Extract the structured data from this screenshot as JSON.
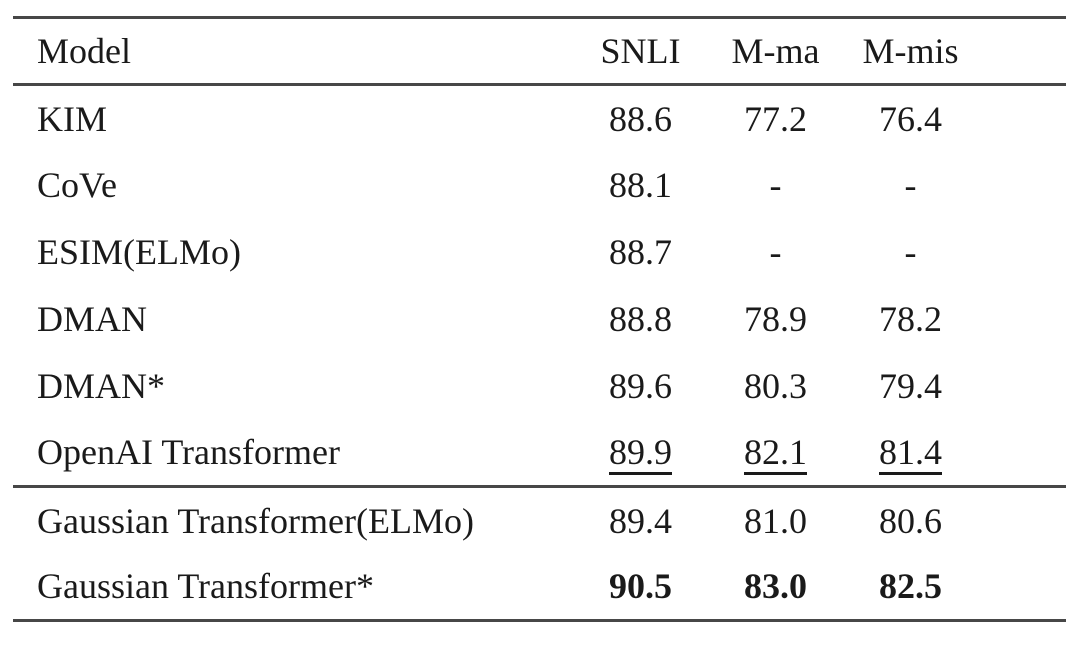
{
  "page": {
    "background": "#ffffff",
    "text_color": "#1a1a1a",
    "rule_color": "#474747"
  },
  "table": {
    "columns": [
      {
        "label": "Model",
        "align": "left"
      },
      {
        "label": "SNLI",
        "align": "center"
      },
      {
        "label": "M-ma",
        "align": "center"
      },
      {
        "label": "M-mis",
        "align": "center"
      }
    ],
    "rows": [
      {
        "model": "KIM",
        "snli": "88.6",
        "m_ma": "77.2",
        "m_mis": "76.4",
        "value_style": "normal",
        "rule_above": false
      },
      {
        "model": "CoVe",
        "snli": "88.1",
        "m_ma": "-",
        "m_mis": "-",
        "value_style": "normal",
        "rule_above": false
      },
      {
        "model": "ESIM(ELMo)",
        "snli": "88.7",
        "m_ma": "-",
        "m_mis": "-",
        "value_style": "normal",
        "rule_above": false
      },
      {
        "model": "DMAN",
        "snli": "88.8",
        "m_ma": "78.9",
        "m_mis": "78.2",
        "value_style": "normal",
        "rule_above": false
      },
      {
        "model": "DMAN*",
        "snli": "89.6",
        "m_ma": "80.3",
        "m_mis": "79.4",
        "value_style": "normal",
        "rule_above": false
      },
      {
        "model": "OpenAI Transformer",
        "snli": "89.9",
        "m_ma": "82.1",
        "m_mis": "81.4",
        "value_style": "underline",
        "rule_above": false
      },
      {
        "model": "Gaussian Transformer(ELMo)",
        "snli": "89.4",
        "m_ma": "81.0",
        "m_mis": "80.6",
        "value_style": "normal",
        "rule_above": true
      },
      {
        "model": "Gaussian Transformer*",
        "snli": "90.5",
        "m_ma": "83.0",
        "m_mis": "82.5",
        "value_style": "bold",
        "rule_above": false
      }
    ]
  }
}
